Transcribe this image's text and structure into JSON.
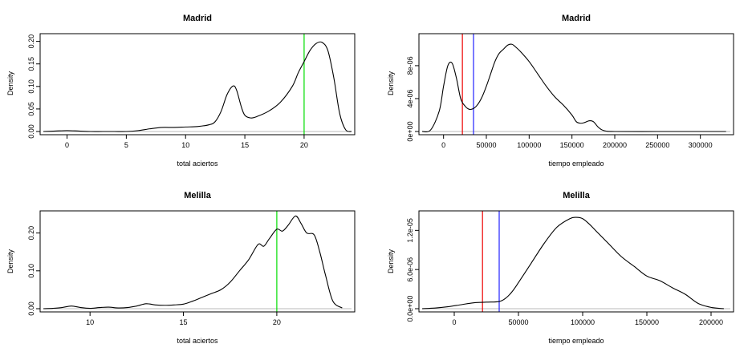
{
  "chart_data": [
    {
      "id": "p1",
      "type": "line",
      "title": "Madrid",
      "xlabel": "total aciertos",
      "ylabel": "Density",
      "xlim": [
        -2,
        24
      ],
      "ylim": [
        0,
        0.21
      ],
      "xticks": [
        0,
        5,
        10,
        15,
        20
      ],
      "xtick_labels": [
        "0",
        "5",
        "10",
        "15",
        "20"
      ],
      "yticks": [
        0,
        0.05,
        0.1,
        0.15,
        0.2
      ],
      "ytick_labels": [
        "0.00",
        "0.05",
        "0.10",
        "0.15",
        "0.20"
      ],
      "baseline": 0,
      "vlines": [
        {
          "x": 20,
          "color": "#00dd00"
        }
      ],
      "series": [
        {
          "name": "density",
          "x": [
            -2.0,
            -1.0,
            0.0,
            1.0,
            2.0,
            3.0,
            4.0,
            5.0,
            6.0,
            7.0,
            8.0,
            9.0,
            10.0,
            11.0,
            12.0,
            12.5,
            13.0,
            13.5,
            14.0,
            14.3,
            14.7,
            15.0,
            15.5,
            16.0,
            17.0,
            18.0,
            19.0,
            19.5,
            20.0,
            20.5,
            21.0,
            21.5,
            22.0,
            22.5,
            23.0,
            23.5,
            24.0
          ],
          "y": [
            0.0,
            0.001,
            0.002,
            0.001,
            0.0,
            0.0,
            0.0,
            0.0,
            0.002,
            0.006,
            0.009,
            0.009,
            0.01,
            0.011,
            0.015,
            0.022,
            0.045,
            0.082,
            0.101,
            0.092,
            0.055,
            0.036,
            0.03,
            0.033,
            0.045,
            0.065,
            0.1,
            0.13,
            0.155,
            0.18,
            0.195,
            0.198,
            0.18,
            0.12,
            0.04,
            0.004,
            0.0
          ]
        }
      ]
    },
    {
      "id": "p2",
      "type": "line",
      "title": "Madrid",
      "xlabel": "tiempo empleado",
      "ylabel": "Density",
      "xlim": [
        -25000,
        335000
      ],
      "ylim": [
        0,
        1.15e-05
      ],
      "xticks": [
        0,
        50000,
        100000,
        150000,
        200000,
        250000,
        300000
      ],
      "xtick_labels": [
        "0",
        "50000",
        "100000",
        "150000",
        "200000",
        "250000",
        "300000"
      ],
      "yticks": [
        0,
        4e-06,
        8e-06
      ],
      "ytick_labels": [
        "0e+00",
        "4e-06",
        "8e-06"
      ],
      "baseline": 0,
      "vlines": [
        {
          "x": 22000,
          "color": "#ee0000"
        },
        {
          "x": 35000,
          "color": "#2222ff"
        }
      ],
      "series": [
        {
          "name": "density",
          "x": [
            -25000,
            -15000,
            -5000,
            0,
            5000,
            10000,
            15000,
            20000,
            25000,
            30000,
            35000,
            40000,
            45000,
            50000,
            55000,
            60000,
            65000,
            70000,
            75000,
            80000,
            85000,
            90000,
            100000,
            110000,
            120000,
            130000,
            140000,
            150000,
            155000,
            160000,
            165000,
            170000,
            175000,
            180000,
            185000,
            190000,
            200000,
            250000,
            300000,
            330000
          ],
          "y": [
            0,
            2e-07,
            2.5e-06,
            5.5e-06,
            8e-06,
            8.3e-06,
            6.5e-06,
            4e-06,
            3.1e-06,
            2.7e-06,
            2.8e-06,
            3.3e-06,
            4.2e-06,
            5.5e-06,
            7e-06,
            8.5e-06,
            9.5e-06,
            1e-05,
            1.05e-05,
            1.06e-05,
            1.02e-05,
            9.7e-06,
            8.5e-06,
            7e-06,
            5.5e-06,
            4.2e-06,
            3.2e-06,
            2e-06,
            1.2e-06,
            1e-06,
            1.1e-06,
            1.3e-06,
            1.2e-06,
            6e-07,
            2e-07,
            5e-08,
            0,
            0,
            0,
            0
          ]
        }
      ]
    },
    {
      "id": "p3",
      "type": "line",
      "title": "Melilla",
      "xlabel": "total aciertos",
      "ylabel": "Density",
      "xlim": [
        7.5,
        24
      ],
      "ylim": [
        0,
        0.25
      ],
      "xticks": [
        10,
        15,
        20
      ],
      "xtick_labels": [
        "10",
        "15",
        "20"
      ],
      "yticks": [
        0,
        0.1,
        0.2
      ],
      "ytick_labels": [
        "0.00",
        "0.10",
        "0.20"
      ],
      "baseline": 0,
      "vlines": [
        {
          "x": 20,
          "color": "#00dd00"
        }
      ],
      "series": [
        {
          "name": "density",
          "x": [
            7.5,
            8.0,
            8.5,
            9.0,
            9.5,
            10.0,
            10.5,
            11.0,
            11.5,
            12.0,
            12.5,
            13.0,
            13.5,
            14.0,
            14.5,
            15.0,
            15.5,
            16.0,
            16.5,
            17.0,
            17.5,
            18.0,
            18.5,
            19.0,
            19.3,
            19.6,
            20.0,
            20.3,
            20.6,
            21.0,
            21.3,
            21.6,
            22.0,
            22.3,
            22.6,
            23.0,
            23.5
          ],
          "y": [
            0.0,
            0.001,
            0.003,
            0.007,
            0.003,
            0.001,
            0.003,
            0.004,
            0.002,
            0.003,
            0.007,
            0.013,
            0.01,
            0.009,
            0.01,
            0.012,
            0.02,
            0.03,
            0.04,
            0.05,
            0.07,
            0.1,
            0.13,
            0.17,
            0.165,
            0.185,
            0.21,
            0.205,
            0.22,
            0.245,
            0.225,
            0.2,
            0.195,
            0.15,
            0.09,
            0.02,
            0.002
          ]
        }
      ]
    },
    {
      "id": "p4",
      "type": "line",
      "title": "Melilla",
      "xlabel": "tiempo empleado",
      "ylabel": "Density",
      "xlim": [
        -25000,
        215000
      ],
      "ylim": [
        0,
        1.45e-05
      ],
      "xticks": [
        0,
        50000,
        100000,
        150000,
        200000
      ],
      "xtick_labels": [
        "0",
        "50000",
        "100000",
        "150000",
        "200000"
      ],
      "yticks": [
        0,
        6e-06,
        1.2e-05
      ],
      "ytick_labels": [
        "0.0e+00",
        "6.0e-06",
        "1.2e-05"
      ],
      "baseline": 0,
      "vlines": [
        {
          "x": 22000,
          "color": "#ee0000"
        },
        {
          "x": 35000,
          "color": "#2222ff"
        }
      ],
      "series": [
        {
          "name": "density",
          "x": [
            -25000,
            -15000,
            -5000,
            5000,
            15000,
            25000,
            35000,
            40000,
            45000,
            50000,
            60000,
            70000,
            80000,
            90000,
            95000,
            100000,
            105000,
            110000,
            120000,
            130000,
            140000,
            150000,
            160000,
            170000,
            180000,
            190000,
            200000,
            210000
          ],
          "y": [
            0,
            1e-07,
            3e-07,
            6e-07,
            9e-07,
            1e-06,
            1.1e-06,
            1.6e-06,
            2.6e-06,
            4e-06,
            7e-06,
            1e-05,
            1.25e-05,
            1.38e-05,
            1.4e-05,
            1.38e-05,
            1.3e-05,
            1.2e-05,
            1e-05,
            8e-06,
            6.5e-06,
            5e-06,
            4.3e-06,
            3.2e-06,
            2.2e-06,
            8e-07,
            2e-07,
            0
          ]
        }
      ]
    }
  ]
}
